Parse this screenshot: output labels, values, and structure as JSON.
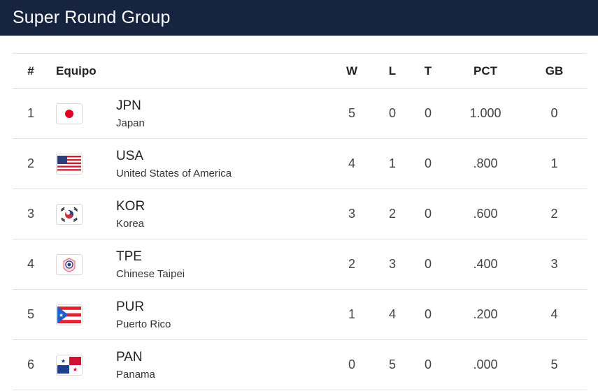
{
  "header": {
    "title": "Super Round Group"
  },
  "columns": {
    "rank": "#",
    "team": "Equipo",
    "w": "W",
    "l": "L",
    "t": "T",
    "pct": "PCT",
    "gb": "GB"
  },
  "rows": [
    {
      "rank": "1",
      "code": "JPN",
      "name": "Japan",
      "flag": "japan-flag-icon",
      "w": "5",
      "l": "0",
      "t": "0",
      "pct": "1.000",
      "gb": "0"
    },
    {
      "rank": "2",
      "code": "USA",
      "name": "United States of America",
      "flag": "usa-flag-icon",
      "w": "4",
      "l": "1",
      "t": "0",
      "pct": ".800",
      "gb": "1"
    },
    {
      "rank": "3",
      "code": "KOR",
      "name": "Korea",
      "flag": "korea-flag-icon",
      "w": "3",
      "l": "2",
      "t": "0",
      "pct": ".600",
      "gb": "2"
    },
    {
      "rank": "4",
      "code": "TPE",
      "name": "Chinese Taipei",
      "flag": "chinese-taipei-flag-icon",
      "w": "2",
      "l": "3",
      "t": "0",
      "pct": ".400",
      "gb": "3"
    },
    {
      "rank": "5",
      "code": "PUR",
      "name": "Puerto Rico",
      "flag": "puerto-rico-flag-icon",
      "w": "1",
      "l": "4",
      "t": "0",
      "pct": ".200",
      "gb": "4"
    },
    {
      "rank": "6",
      "code": "PAN",
      "name": "Panama",
      "flag": "panama-flag-icon",
      "w": "0",
      "l": "5",
      "t": "0",
      "pct": ".000",
      "gb": "5"
    }
  ],
  "colors": {
    "header_bg": "#172440",
    "japan_red": "#e0001e",
    "usa_red": "#c8202f",
    "usa_blue": "#2c3e7a",
    "pur_blue": "#1f5fc9",
    "pan_blue": "#1e3f8f",
    "pan_red": "#d21034"
  }
}
